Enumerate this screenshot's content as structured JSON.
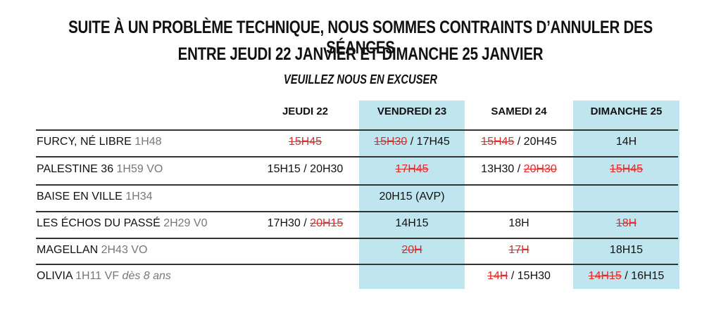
{
  "header": {
    "line1": "SUITE À UN PROBLÈME TECHNIQUE, NOUS SOMMES CONTRAINTS D’ANNULER DES SÉANCES",
    "line2": "ENTRE JEUDI 22 JANVIER ET DIMANCHE 25 JANVIER",
    "subtitle": "VEUILLEZ NOUS EN EXCUSER"
  },
  "colors": {
    "highlight_column": "#bfe5ee",
    "cancelled": "#e32a2a"
  },
  "days": [
    "JEUDI 22",
    "VENDREDI 23",
    "SAMEDI 24",
    "DIMANCHE 25"
  ],
  "films": [
    {
      "title": "FURCY, NÉ LIBRE",
      "meta": "1H48",
      "age": "",
      "showings": [
        [
          {
            "t": "15H45",
            "cancelled": true
          }
        ],
        [
          {
            "t": "15H30",
            "cancelled": true
          },
          {
            "t": "17H45",
            "cancelled": false
          }
        ],
        [
          {
            "t": "15H45",
            "cancelled": true
          },
          {
            "t": "20H45",
            "cancelled": false
          }
        ],
        [
          {
            "t": "14H",
            "cancelled": false
          }
        ]
      ]
    },
    {
      "title": "PALESTINE 36",
      "meta": "1H59 VO",
      "age": "",
      "showings": [
        [
          {
            "t": "15H15",
            "cancelled": false
          },
          {
            "t": "20H30",
            "cancelled": false
          }
        ],
        [
          {
            "t": "17H45",
            "cancelled": true
          }
        ],
        [
          {
            "t": "13H30",
            "cancelled": false
          },
          {
            "t": "20H30",
            "cancelled": true
          }
        ],
        [
          {
            "t": "15H45",
            "cancelled": true
          }
        ]
      ]
    },
    {
      "title": "BAISE EN VILLE",
      "meta": "1H34",
      "age": "",
      "showings": [
        [],
        [
          {
            "t": "20H15 (AVP)",
            "cancelled": false
          }
        ],
        [],
        []
      ]
    },
    {
      "title": "LES ÉCHOS DU PASSÉ",
      "meta": "2H29 V0",
      "age": "",
      "showings": [
        [
          {
            "t": "17H30",
            "cancelled": false
          },
          {
            "t": "20H15",
            "cancelled": true
          }
        ],
        [
          {
            "t": "14H15",
            "cancelled": false
          }
        ],
        [
          {
            "t": "18H",
            "cancelled": false
          }
        ],
        [
          {
            "t": "18H",
            "cancelled": true
          }
        ]
      ]
    },
    {
      "title": "MAGELLAN",
      "meta": "2H43 VO",
      "age": "",
      "showings": [
        [],
        [
          {
            "t": "20H",
            "cancelled": true
          }
        ],
        [
          {
            "t": "17H",
            "cancelled": true
          }
        ],
        [
          {
            "t": "18H15",
            "cancelled": false
          }
        ]
      ]
    },
    {
      "title": "OLIVIA",
      "meta": " 1H11 VF",
      "age": "dès 8 ans",
      "showings": [
        [],
        [],
        [
          {
            "t": "14H",
            "cancelled": true
          },
          {
            "t": "15H30",
            "cancelled": false
          }
        ],
        [
          {
            "t": "14H15",
            "cancelled": true
          },
          {
            "t": "16H15",
            "cancelled": false
          }
        ]
      ]
    }
  ],
  "separator": " / "
}
